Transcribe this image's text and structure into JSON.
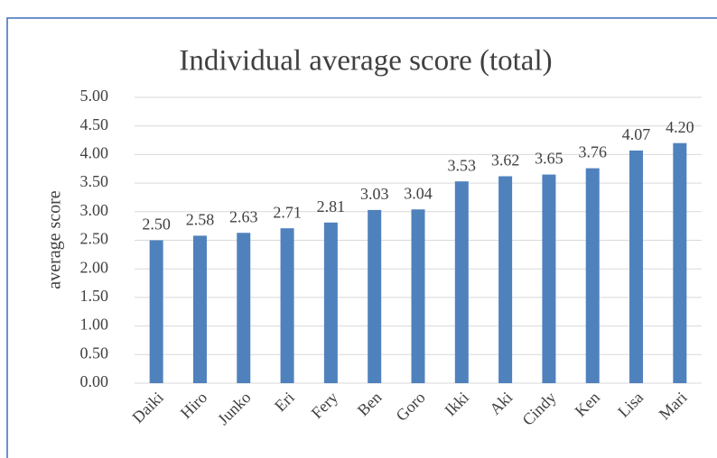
{
  "chart_data": {
    "type": "bar",
    "title": "Individual average score (total)",
    "y_label": "average score",
    "categories": [
      "Daiki",
      "Hiro",
      "Junko",
      "Eri",
      "Fery",
      "Ben",
      "Goro",
      "Ikki",
      "Aki",
      "Cindy",
      "Ken",
      "Lisa",
      "Mari"
    ],
    "values": [
      2.5,
      2.58,
      2.63,
      2.71,
      2.81,
      3.03,
      3.04,
      3.53,
      3.62,
      3.65,
      3.76,
      4.07,
      4.2
    ],
    "value_labels": [
      "2.50",
      "2.58",
      "2.63",
      "2.71",
      "2.81",
      "3.03",
      "3.04",
      "3.53",
      "3.62",
      "3.65",
      "3.76",
      "4.07",
      "4.20"
    ],
    "color": "#4f81bd",
    "ylim": [
      0,
      5
    ],
    "yticks": [
      {
        "value": 0,
        "label": "0.00"
      },
      {
        "value": 0.5,
        "label": "0.50"
      },
      {
        "value": 1,
        "label": "1.00"
      },
      {
        "value": 1.5,
        "label": "1.50"
      },
      {
        "value": 2,
        "label": "2.00"
      },
      {
        "value": 2.5,
        "label": "2.50"
      },
      {
        "value": 3,
        "label": "3.00"
      },
      {
        "value": 3.5,
        "label": "3.50"
      },
      {
        "value": 4,
        "label": "4.00"
      },
      {
        "value": 4.5,
        "label": "4.50"
      },
      {
        "value": 5,
        "label": "5.00"
      }
    ],
    "grid": true
  }
}
